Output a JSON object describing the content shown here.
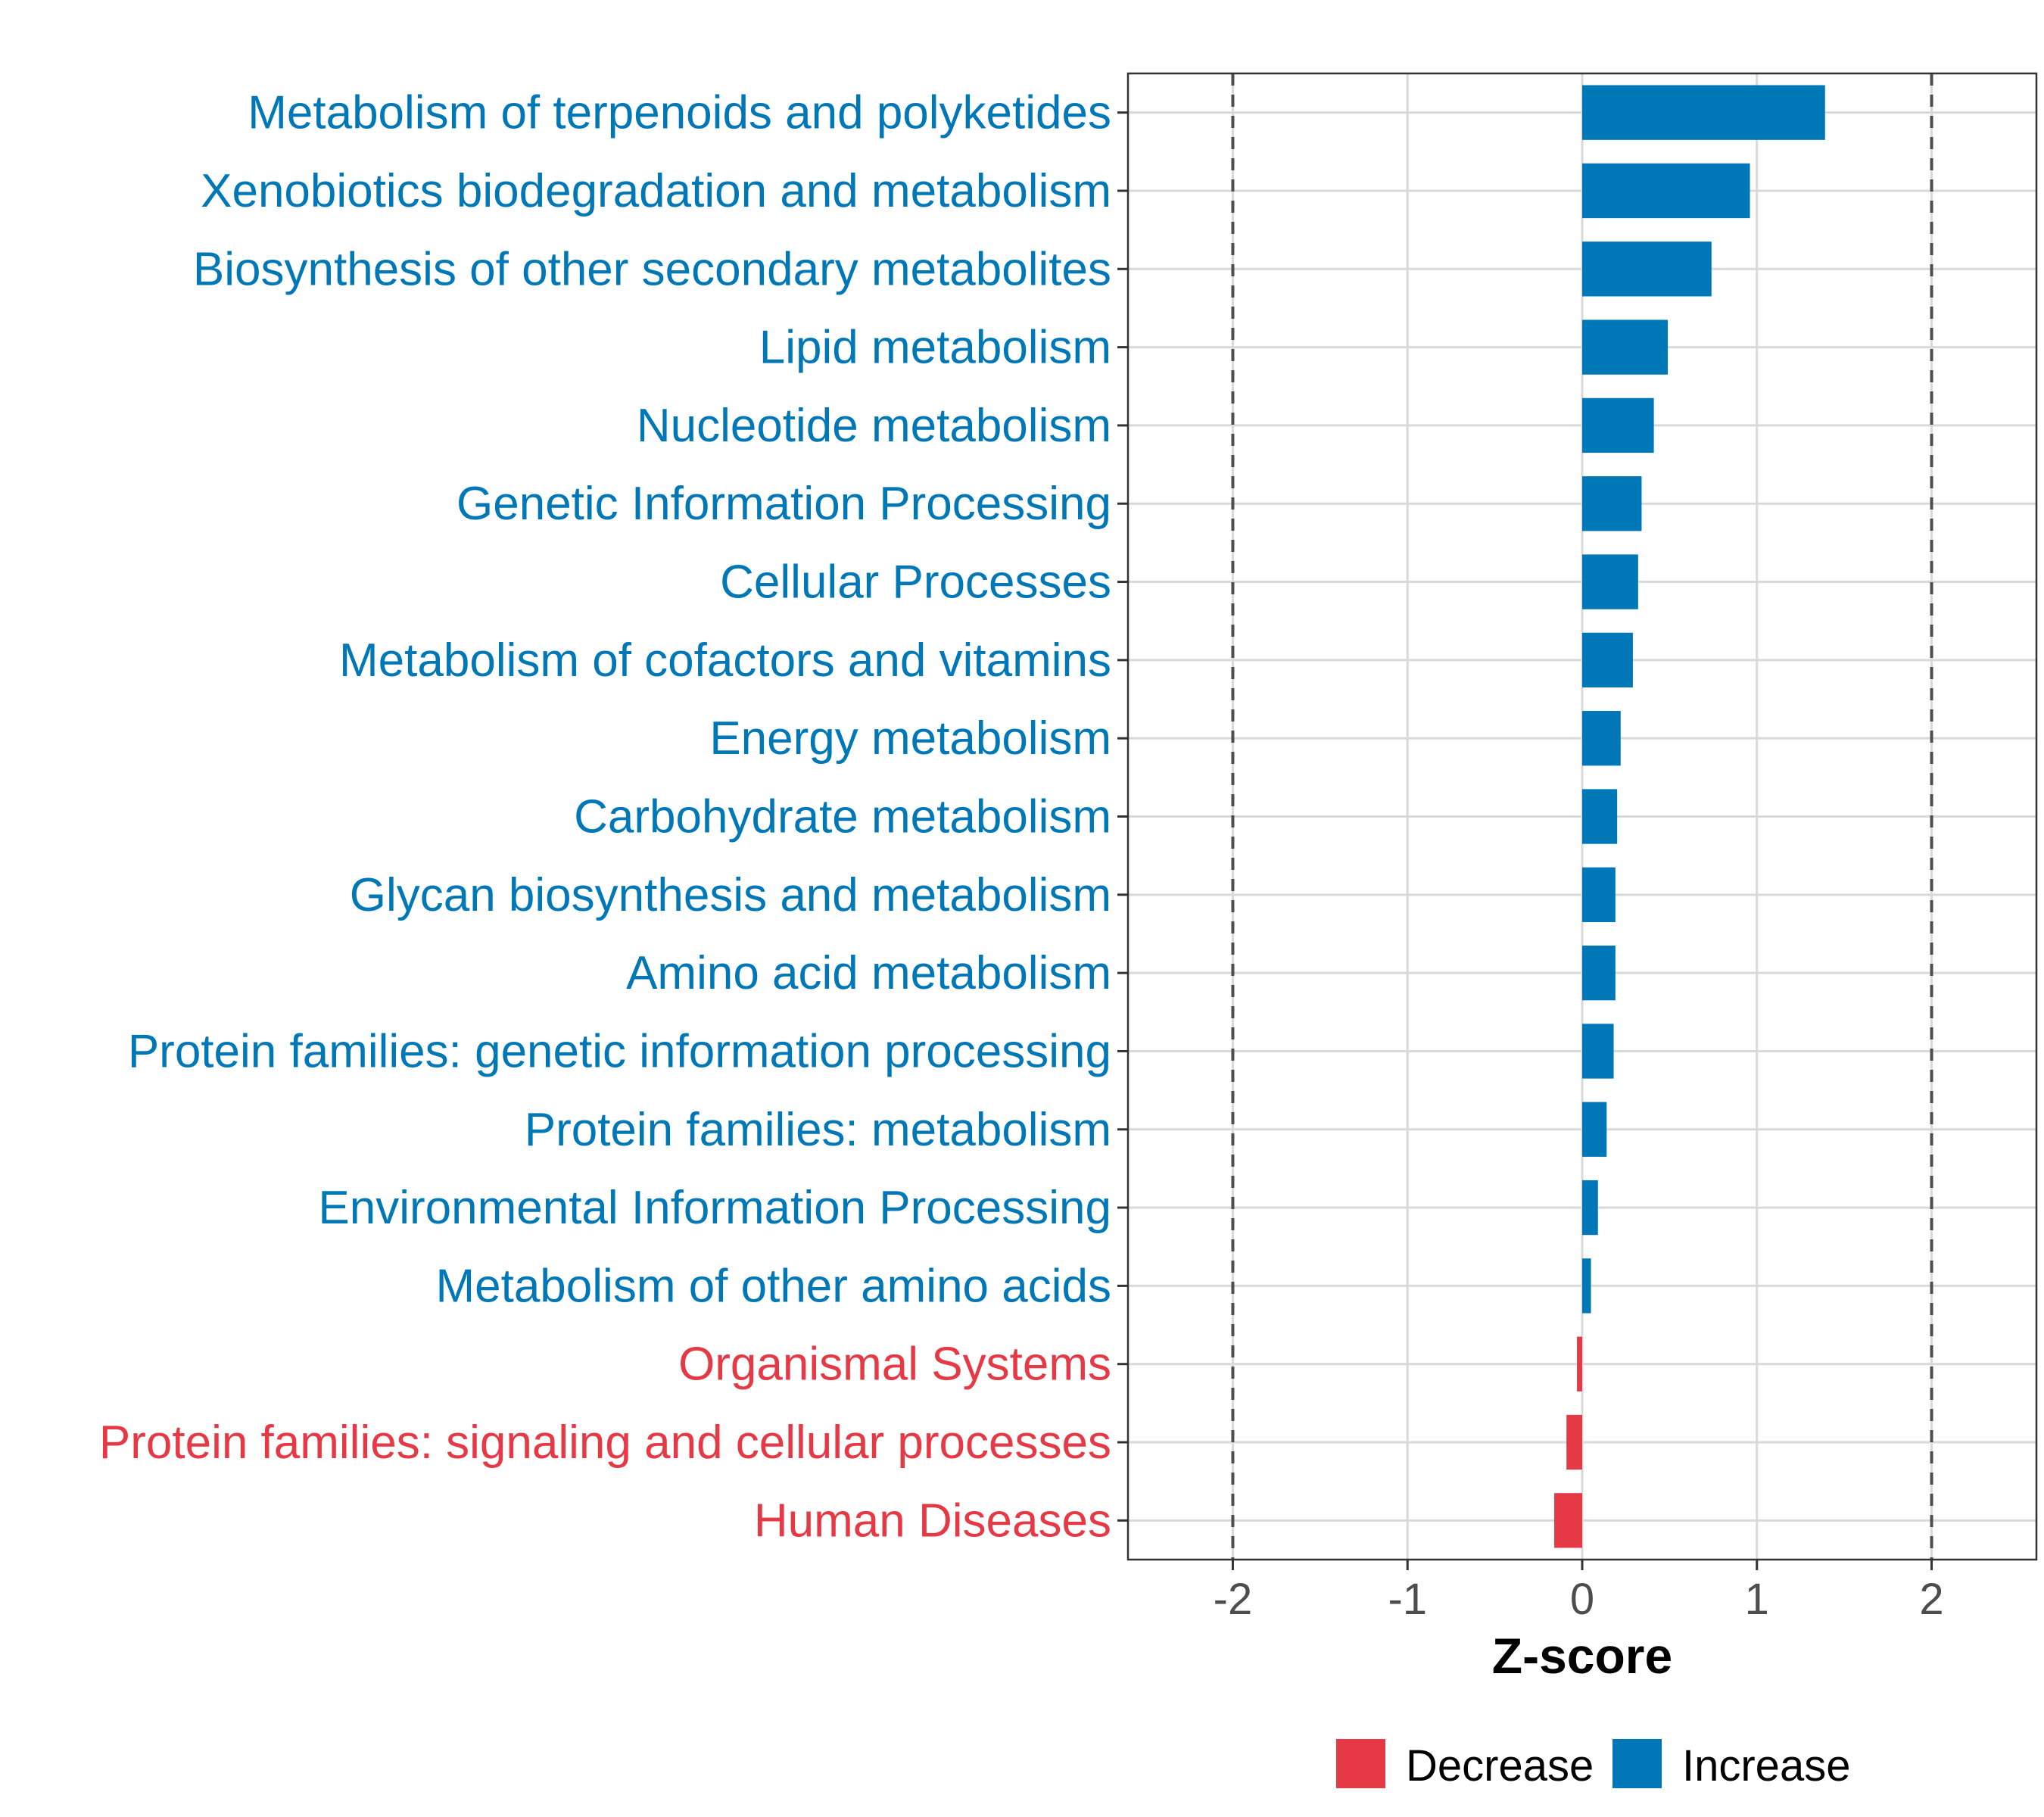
{
  "chart_data": {
    "type": "bar",
    "orientation": "horizontal",
    "title": "",
    "xlabel": "Z-score",
    "ylabel": "",
    "xlim": [
      -2.6,
      2.6
    ],
    "x_ticks": [
      -2,
      -1,
      0,
      1,
      2
    ],
    "x_tick_labels": [
      "-2",
      "-1",
      "0",
      "1",
      "2"
    ],
    "reference_lines": [
      -2,
      2
    ],
    "grid": true,
    "colors": {
      "Decrease": "#e63946",
      "Increase": "#0077b6"
    },
    "categories": [
      "Metabolism of terpenoids and polyketides",
      "Xenobiotics biodegradation and metabolism",
      "Biosynthesis of other secondary metabolites",
      "Lipid metabolism",
      "Nucleotide metabolism",
      "Genetic Information Processing",
      "Cellular Processes",
      "Metabolism of cofactors and vitamins",
      "Energy metabolism",
      "Carbohydrate metabolism",
      "Glycan biosynthesis and metabolism",
      "Amino acid metabolism",
      "Protein families: genetic information processing",
      "Protein families: metabolism",
      "Environmental Information Processing",
      "Metabolism of other amino acids",
      "Organismal Systems",
      "Protein families: signaling and cellular processes",
      "Human Diseases"
    ],
    "values": [
      1.39,
      0.96,
      0.74,
      0.49,
      0.41,
      0.34,
      0.32,
      0.29,
      0.22,
      0.2,
      0.19,
      0.19,
      0.18,
      0.14,
      0.09,
      0.05,
      -0.03,
      -0.09,
      -0.16
    ],
    "groups": [
      "Increase",
      "Increase",
      "Increase",
      "Increase",
      "Increase",
      "Increase",
      "Increase",
      "Increase",
      "Increase",
      "Increase",
      "Increase",
      "Increase",
      "Increase",
      "Increase",
      "Increase",
      "Increase",
      "Decrease",
      "Decrease",
      "Decrease"
    ],
    "legend": {
      "position": "bottom",
      "entries": [
        "Decrease",
        "Increase"
      ]
    }
  }
}
